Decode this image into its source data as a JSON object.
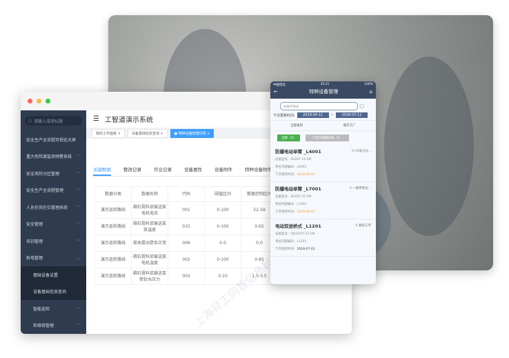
{
  "window": {
    "title": "工智道演示系统",
    "tabs": [
      {
        "label": "我的工作面板"
      },
      {
        "label": "设备基础信息查询"
      },
      {
        "label": " ● 特种设备管理详情"
      }
    ]
  },
  "sidebar": {
    "search_placeholder": "请输入菜单标题",
    "items": [
      {
        "label": "安全生产全流程可视化大屏"
      },
      {
        "label": "重大危险源监测预警系统"
      },
      {
        "label": "安全风险分区管理"
      },
      {
        "label": "安全生产全流程管理"
      },
      {
        "label": "人员在岗在位管理系统"
      },
      {
        "label": "安全管理"
      },
      {
        "label": "培训管理"
      },
      {
        "label": "机电管理"
      },
      {
        "label": "基础设备设置"
      },
      {
        "label": "设备基础信息查询"
      },
      {
        "label": "智能巡检"
      },
      {
        "label": "检维修管理"
      }
    ]
  },
  "content_tabs": [
    "关键数据",
    "整改记录",
    "作业记录",
    "设备属性",
    "设备附件",
    "特种设备附件"
  ],
  "table": {
    "headers": [
      "数据分类",
      "数据名称",
      "代码",
      "阈值区间",
      "数据控制区间"
    ],
    "rows": [
      [
        "演示巡检路线",
        "磷石膏料浆输送泵电机电流",
        "001",
        "0-100",
        "22-58"
      ],
      [
        "演示巡检路线",
        "磷石膏料浆输送泵泵温度",
        "015",
        "0-100",
        "0-65"
      ],
      [
        "演示巡检路线",
        "泵体震动是否正常",
        "006",
        "0-0",
        "0-0"
      ],
      [
        "演示巡检路线",
        "磷石膏料浆输送泵电机温度",
        "002",
        "0-100",
        "0-85"
      ],
      [
        "演示巡检路线",
        "磷石膏料浆输送泵密封水压力",
        "003",
        "0-10",
        "1.5-3.5"
      ]
    ]
  },
  "watermark": "上海异工同智信息科技有限公司",
  "phone": {
    "carrier": "中国电信",
    "time": "20:21",
    "battery": "100%",
    "title": "特种设备管理",
    "search_placeholder": "关键字搜索",
    "date_label": "下次更新时间:",
    "date_from": "2018-04-11",
    "date_sep": "~",
    "date_to": "2018-07-11",
    "filter1": "全部类别",
    "filter2": "南京工厂",
    "btn_all": "全部（3）",
    "btn_near": "只显示临期设备（2）",
    "items": [
      {
        "name": "防爆电动单臂 _L4001",
        "loc": "C0滚冷分...",
        "model": "设备型号：BLDST-14.5M",
        "code": "单位内部编号：L4001",
        "date_label": "下次更新时间：",
        "date": "2018-05-01",
        "warn": true
      },
      {
        "name": "防爆电动单臂 _L7001",
        "loc": "一膜甲醛合...",
        "model": "设备型号：BLDST-22.5M",
        "code": "单位内部编号：L7001",
        "date_label": "下次更新时间：",
        "date": "2018-06-01",
        "warn": true
      },
      {
        "name": "电动双进桥式 _L1201",
        "loc": "磨煤工序",
        "model": "设备型号：QD32/5T-25.5M",
        "code": "单位内部编号：L1201",
        "date_label": "下次更新时间：",
        "date": "2018-07-01",
        "warn": false
      }
    ]
  },
  "colors": {
    "accent": "#409eff",
    "sidebar": "#2f3c50",
    "phone_header": "#3a4a63",
    "warning": "#f0a030"
  }
}
